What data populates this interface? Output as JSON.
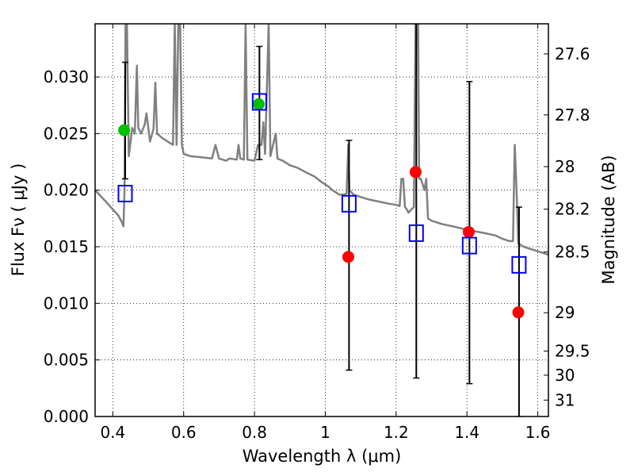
{
  "chart_data": {
    "type": "scatter",
    "xlabel": "Wavelength  λ (μm)",
    "ylabel": "Flux  Fν ( μJy )",
    "y2label": "Magnitude (AB)",
    "xlim": [
      0.35,
      1.63
    ],
    "ylim": [
      0.0,
      0.0347
    ],
    "grid": true,
    "x_ticks": [
      {
        "value": 0.4,
        "label": "0.4"
      },
      {
        "value": 0.6,
        "label": "0.6"
      },
      {
        "value": 0.8,
        "label": "0.8"
      },
      {
        "value": 1.0,
        "label": "1"
      },
      {
        "value": 1.2,
        "label": "1.2"
      },
      {
        "value": 1.4,
        "label": "1.4"
      },
      {
        "value": 1.6,
        "label": "1.6"
      }
    ],
    "y_ticks": [
      {
        "value": 0.0,
        "label": "0.000"
      },
      {
        "value": 0.005,
        "label": "0.005"
      },
      {
        "value": 0.01,
        "label": "0.010"
      },
      {
        "value": 0.015,
        "label": "0.015"
      },
      {
        "value": 0.02,
        "label": "0.020"
      },
      {
        "value": 0.025,
        "label": "0.025"
      },
      {
        "value": 0.03,
        "label": "0.030"
      }
    ],
    "y2_ticks": [
      {
        "flux": 0.03204,
        "label": "27.6"
      },
      {
        "flux": 0.02665,
        "label": "27.8"
      },
      {
        "flux": 0.02208,
        "label": "28"
      },
      {
        "flux": 0.01832,
        "label": "28.2"
      },
      {
        "flux": 0.01454,
        "label": "28.5"
      },
      {
        "flux": 0.00917,
        "label": "29"
      },
      {
        "flux": 0.00578,
        "label": "29.5"
      },
      {
        "flux": 0.00365,
        "label": "30"
      },
      {
        "flux": 0.00145,
        "label": "31"
      }
    ],
    "series": [
      {
        "marker": "filled-circle",
        "color": "#00bf00",
        "points": [
          {
            "x": 0.432,
            "y": 0.0253
          },
          {
            "x": 0.812,
            "y": 0.0276
          }
        ]
      },
      {
        "marker": "filled-circle",
        "color": "#ff0000",
        "points": [
          {
            "x": 1.065,
            "y": 0.0141
          },
          {
            "x": 1.255,
            "y": 0.0216
          },
          {
            "x": 1.405,
            "y": 0.0163
          },
          {
            "x": 1.545,
            "y": 0.0092
          }
        ]
      },
      {
        "marker": "open-square",
        "color": "#0000ff",
        "points": [
          {
            "x": 0.435,
            "y": 0.0197
          },
          {
            "x": 0.814,
            "y": 0.0278
          },
          {
            "x": 1.067,
            "y": 0.0188
          },
          {
            "x": 1.257,
            "y": 0.0162
          },
          {
            "x": 1.407,
            "y": 0.0151
          },
          {
            "x": 1.547,
            "y": 0.0134
          }
        ]
      }
    ],
    "error_bars": [
      {
        "x": 0.435,
        "low": 0.021,
        "high": 0.0313
      },
      {
        "x": 0.814,
        "low": 0.0227,
        "high": 0.0327
      },
      {
        "x": 1.067,
        "low": 0.0041,
        "high": 0.0244
      },
      {
        "x": 1.257,
        "low": 0.0034,
        "high": 0.0347
      },
      {
        "x": 1.407,
        "low": 0.0029,
        "high": 0.0296
      },
      {
        "x": 1.547,
        "low": 0.0,
        "high": 0.0185
      }
    ],
    "spectrum": {
      "color": "#808080",
      "points": [
        [
          0.35,
          0.02
        ],
        [
          0.38,
          0.019
        ],
        [
          0.4,
          0.0183
        ],
        [
          0.415,
          0.0178
        ],
        [
          0.425,
          0.0172
        ],
        [
          0.43,
          0.0168
        ],
        [
          0.433,
          0.02
        ],
        [
          0.436,
          0.0347
        ],
        [
          0.44,
          0.0347
        ],
        [
          0.445,
          0.023
        ],
        [
          0.455,
          0.0255
        ],
        [
          0.462,
          0.025
        ],
        [
          0.468,
          0.031
        ],
        [
          0.472,
          0.0255
        ],
        [
          0.48,
          0.025
        ],
        [
          0.49,
          0.0258
        ],
        [
          0.495,
          0.0268
        ],
        [
          0.505,
          0.0243
        ],
        [
          0.515,
          0.0254
        ],
        [
          0.52,
          0.0295
        ],
        [
          0.525,
          0.025
        ],
        [
          0.54,
          0.0246
        ],
        [
          0.55,
          0.0244
        ],
        [
          0.56,
          0.0242
        ],
        [
          0.57,
          0.024
        ],
        [
          0.575,
          0.0347
        ],
        [
          0.58,
          0.024
        ],
        [
          0.585,
          0.0347
        ],
        [
          0.59,
          0.0347
        ],
        [
          0.595,
          0.024
        ],
        [
          0.6,
          0.0232
        ],
        [
          0.62,
          0.023
        ],
        [
          0.65,
          0.0229
        ],
        [
          0.68,
          0.0228
        ],
        [
          0.69,
          0.024
        ],
        [
          0.7,
          0.0228
        ],
        [
          0.72,
          0.0226
        ],
        [
          0.73,
          0.0228
        ],
        [
          0.75,
          0.0227
        ],
        [
          0.755,
          0.024
        ],
        [
          0.76,
          0.0228
        ],
        [
          0.77,
          0.0227
        ],
        [
          0.775,
          0.0347
        ],
        [
          0.78,
          0.0227
        ],
        [
          0.8,
          0.0226
        ],
        [
          0.81,
          0.024
        ],
        [
          0.82,
          0.024
        ],
        [
          0.825,
          0.026
        ],
        [
          0.83,
          0.0232
        ],
        [
          0.84,
          0.0347
        ],
        [
          0.845,
          0.023
        ],
        [
          0.86,
          0.025
        ],
        [
          0.865,
          0.0228
        ],
        [
          0.88,
          0.0226
        ],
        [
          0.9,
          0.0222
        ],
        [
          0.92,
          0.022
        ],
        [
          0.95,
          0.0215
        ],
        [
          0.97,
          0.0212
        ],
        [
          0.99,
          0.0207
        ],
        [
          1.0,
          0.0205
        ],
        [
          1.01,
          0.0203
        ],
        [
          1.02,
          0.02
        ],
        [
          1.03,
          0.0198
        ],
        [
          1.04,
          0.0196
        ],
        [
          1.05,
          0.0196
        ],
        [
          1.06,
          0.0197
        ],
        [
          1.065,
          0.024
        ],
        [
          1.068,
          0.02
        ],
        [
          1.08,
          0.0196
        ],
        [
          1.1,
          0.0194
        ],
        [
          1.12,
          0.0192
        ],
        [
          1.15,
          0.019
        ],
        [
          1.18,
          0.0188
        ],
        [
          1.2,
          0.0187
        ],
        [
          1.21,
          0.0186
        ],
        [
          1.215,
          0.021
        ],
        [
          1.22,
          0.021
        ],
        [
          1.225,
          0.0185
        ],
        [
          1.23,
          0.0183
        ],
        [
          1.235,
          0.018
        ],
        [
          1.24,
          0.0182
        ],
        [
          1.25,
          0.0185
        ],
        [
          1.255,
          0.0347
        ],
        [
          1.262,
          0.0347
        ],
        [
          1.265,
          0.021
        ],
        [
          1.27,
          0.021
        ],
        [
          1.28,
          0.02
        ],
        [
          1.285,
          0.021
        ],
        [
          1.29,
          0.0175
        ],
        [
          1.3,
          0.0173
        ],
        [
          1.33,
          0.017
        ],
        [
          1.36,
          0.0168
        ],
        [
          1.4,
          0.0165
        ],
        [
          1.45,
          0.0162
        ],
        [
          1.48,
          0.016
        ],
        [
          1.5,
          0.0157
        ],
        [
          1.52,
          0.0155
        ],
        [
          1.53,
          0.0155
        ],
        [
          1.535,
          0.024
        ],
        [
          1.54,
          0.02
        ],
        [
          1.545,
          0.0153
        ],
        [
          1.56,
          0.015
        ],
        [
          1.58,
          0.0148
        ],
        [
          1.6,
          0.0146
        ],
        [
          1.63,
          0.0143
        ]
      ]
    }
  }
}
